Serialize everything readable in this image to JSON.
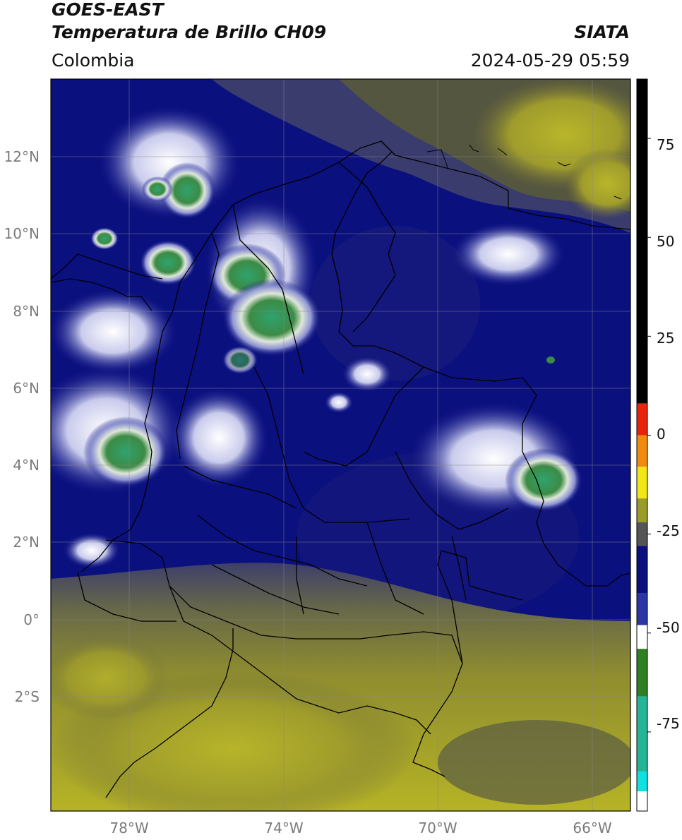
{
  "header": {
    "satellite": "GOES-EAST",
    "product": "Temperatura de Brillo CH09",
    "agency": "SIATA",
    "region": "Colombia",
    "datetime": "2024-05-29 05:59"
  },
  "map": {
    "lat_labels": [
      "12°N",
      "10°N",
      "8°N",
      "6°N",
      "4°N",
      "2°N",
      "0°",
      "2°S"
    ],
    "lon_labels": [
      "78°W",
      "74°W",
      "70°W",
      "66°W"
    ],
    "lat_values": [
      12,
      10,
      8,
      6,
      4,
      2,
      0,
      -2
    ],
    "lon_values": [
      -78,
      -74,
      -70,
      -66
    ],
    "extent": {
      "lon_min": -80,
      "lon_max": -65,
      "lat_min": -4.5,
      "lat_max": 14
    }
  },
  "colorbar": {
    "tick_labels": [
      "75",
      "50",
      "25",
      "0",
      "-25",
      "-50",
      "-75"
    ],
    "tick_values": [
      75,
      50,
      25,
      0,
      -25,
      -50,
      -75
    ],
    "range": [
      -95,
      90
    ],
    "colors": {
      "black": "#000000",
      "red": "#e8250c",
      "orange": "#f08a10",
      "yellow": "#f2e617",
      "olive": "#9b9b2a",
      "gray": "#555555",
      "navy": "#0b107f",
      "blue": "#2c36a6",
      "white": "#ffffff",
      "green": "#2f7f24",
      "teal": "#25b596",
      "cyan": "#0fe0e0"
    }
  }
}
